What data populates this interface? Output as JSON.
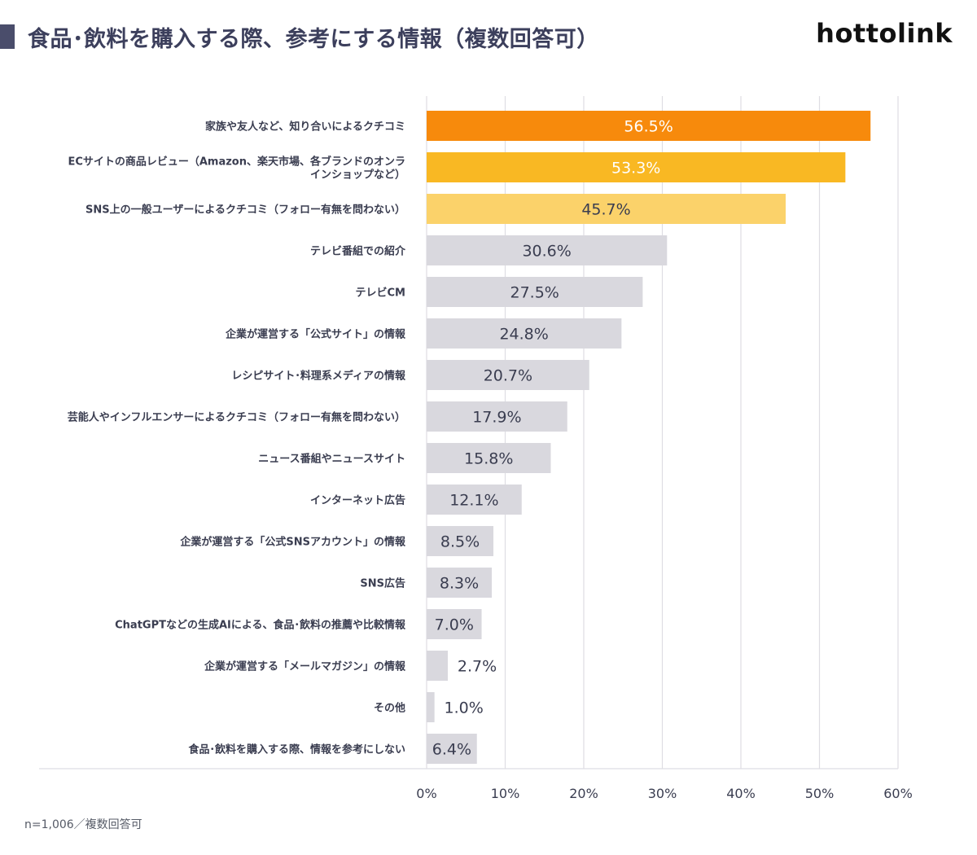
{
  "header": {
    "title": "食品･飲料を購入する際、参考にする情報（複数回答可）",
    "logo_text": "hottolink"
  },
  "footnote": "n=1,006／複数回答可",
  "colors": {
    "rank1": "#f78a0c",
    "rank2": "#f9b823",
    "rank3": "#fbd26a",
    "other": "#d9d8de",
    "gridline": "#dedde3",
    "title_bar": "#4a4d6b"
  },
  "chart_data": {
    "type": "bar",
    "orientation": "horizontal",
    "categories": [
      [
        "家族や友人など、知り合いによるクチコミ"
      ],
      [
        "ECサイトの商品レビュー（Amazon、楽天市場、各ブランドのオンラ",
        "インショップなど）"
      ],
      [
        "SNS上の一般ユーザーによるクチコミ（フォロー有無を問わない）"
      ],
      [
        "テレビ番組での紹介"
      ],
      [
        "テレビCM"
      ],
      [
        "企業が運営する「公式サイト」の情報"
      ],
      [
        "レシピサイト･料理系メディアの情報"
      ],
      [
        "芸能人やインフルエンサーによるクチコミ（フォロー有無を問わない）"
      ],
      [
        "ニュース番組やニュースサイト"
      ],
      [
        "インターネット広告"
      ],
      [
        "企業が運営する「公式SNSアカウント」の情報"
      ],
      [
        "SNS広告"
      ],
      [
        "ChatGPTなどの生成AIによる、食品･飲料の推薦や比較情報"
      ],
      [
        "企業が運営する「メールマガジン」の情報"
      ],
      [
        "その他"
      ],
      [
        "食品･飲料を購入する際、情報を参考にしない"
      ]
    ],
    "values": [
      56.5,
      53.3,
      45.7,
      30.6,
      27.5,
      24.8,
      20.7,
      17.9,
      15.8,
      12.1,
      8.5,
      8.3,
      7.0,
      2.7,
      1.0,
      6.4
    ],
    "value_labels": [
      "56.5%",
      "53.3%",
      "45.7%",
      "30.6%",
      "27.5%",
      "24.8%",
      "20.7%",
      "17.9%",
      "15.8%",
      "12.1%",
      "8.5%",
      "8.3%",
      "7.0%",
      "2.7%",
      "1.0%",
      "6.4%"
    ],
    "xlim": [
      0,
      60
    ],
    "ticks": [
      0,
      10,
      20,
      30,
      40,
      50,
      60
    ],
    "tick_labels": [
      "0%",
      "10%",
      "20%",
      "30%",
      "40%",
      "50%",
      "60%"
    ],
    "grid": true,
    "legend": "none"
  }
}
